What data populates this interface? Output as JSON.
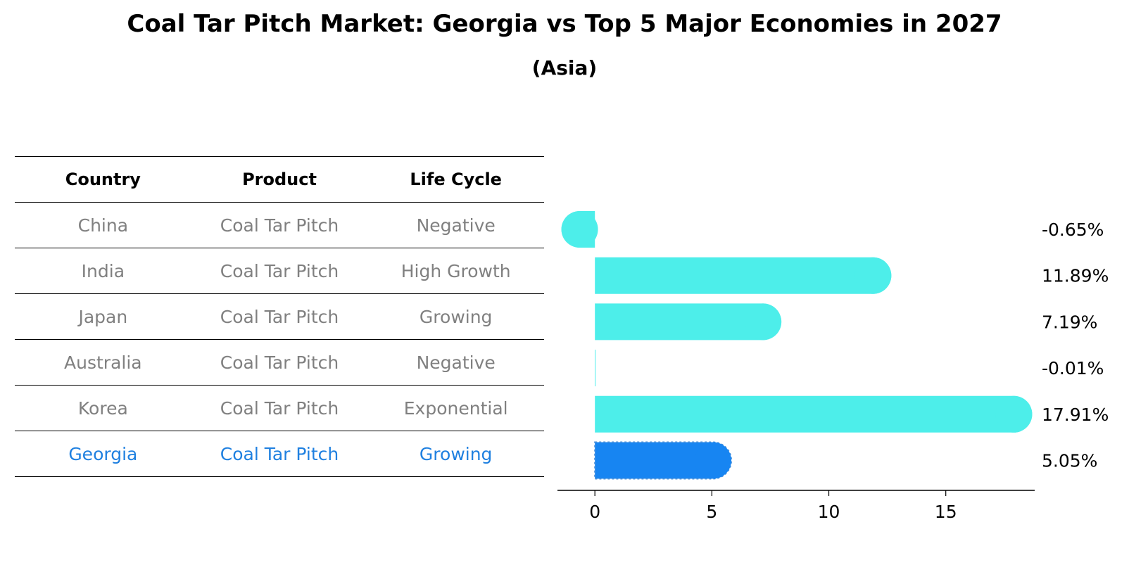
{
  "title": "Coal Tar Pitch Market: Georgia vs Top 5 Major Economies in 2027",
  "subtitle": "(Asia)",
  "table": {
    "headers": [
      "Country",
      "Product",
      "Life Cycle"
    ],
    "rows": [
      {
        "country": "China",
        "product": "Coal Tar Pitch",
        "life_cycle": "Negative",
        "highlight": false
      },
      {
        "country": "India",
        "product": "Coal Tar Pitch",
        "life_cycle": "High Growth",
        "highlight": false
      },
      {
        "country": "Japan",
        "product": "Coal Tar Pitch",
        "life_cycle": "Growing",
        "highlight": false
      },
      {
        "country": "Australia",
        "product": "Coal Tar Pitch",
        "life_cycle": "Negative",
        "highlight": false
      },
      {
        "country": "Korea",
        "product": "Coal Tar Pitch",
        "life_cycle": "Exponential",
        "highlight": false
      },
      {
        "country": "Georgia",
        "product": "Coal Tar Pitch",
        "life_cycle": "Growing",
        "highlight": true
      }
    ]
  },
  "colors": {
    "bar": "#4deeea",
    "highlight_bar": "#1785f2",
    "text_muted": "#808080",
    "text_highlight": "#1f80e0"
  },
  "chart_data": {
    "type": "bar",
    "orientation": "horizontal",
    "categories": [
      "China",
      "India",
      "Japan",
      "Australia",
      "Korea",
      "Georgia"
    ],
    "values": [
      -0.65,
      11.89,
      7.19,
      -0.01,
      17.91,
      5.05
    ],
    "labels": [
      "-0.65%",
      "11.89%",
      "7.19%",
      "-0.01%",
      "17.91%",
      "5.05%"
    ],
    "highlight": "Georgia",
    "xlim": [
      -1.6,
      18.8
    ],
    "xticks": [
      0,
      5,
      10,
      15
    ],
    "title": "Coal Tar Pitch Market: Georgia vs Top 5 Major Economies in 2027",
    "subtitle": "(Asia)"
  }
}
